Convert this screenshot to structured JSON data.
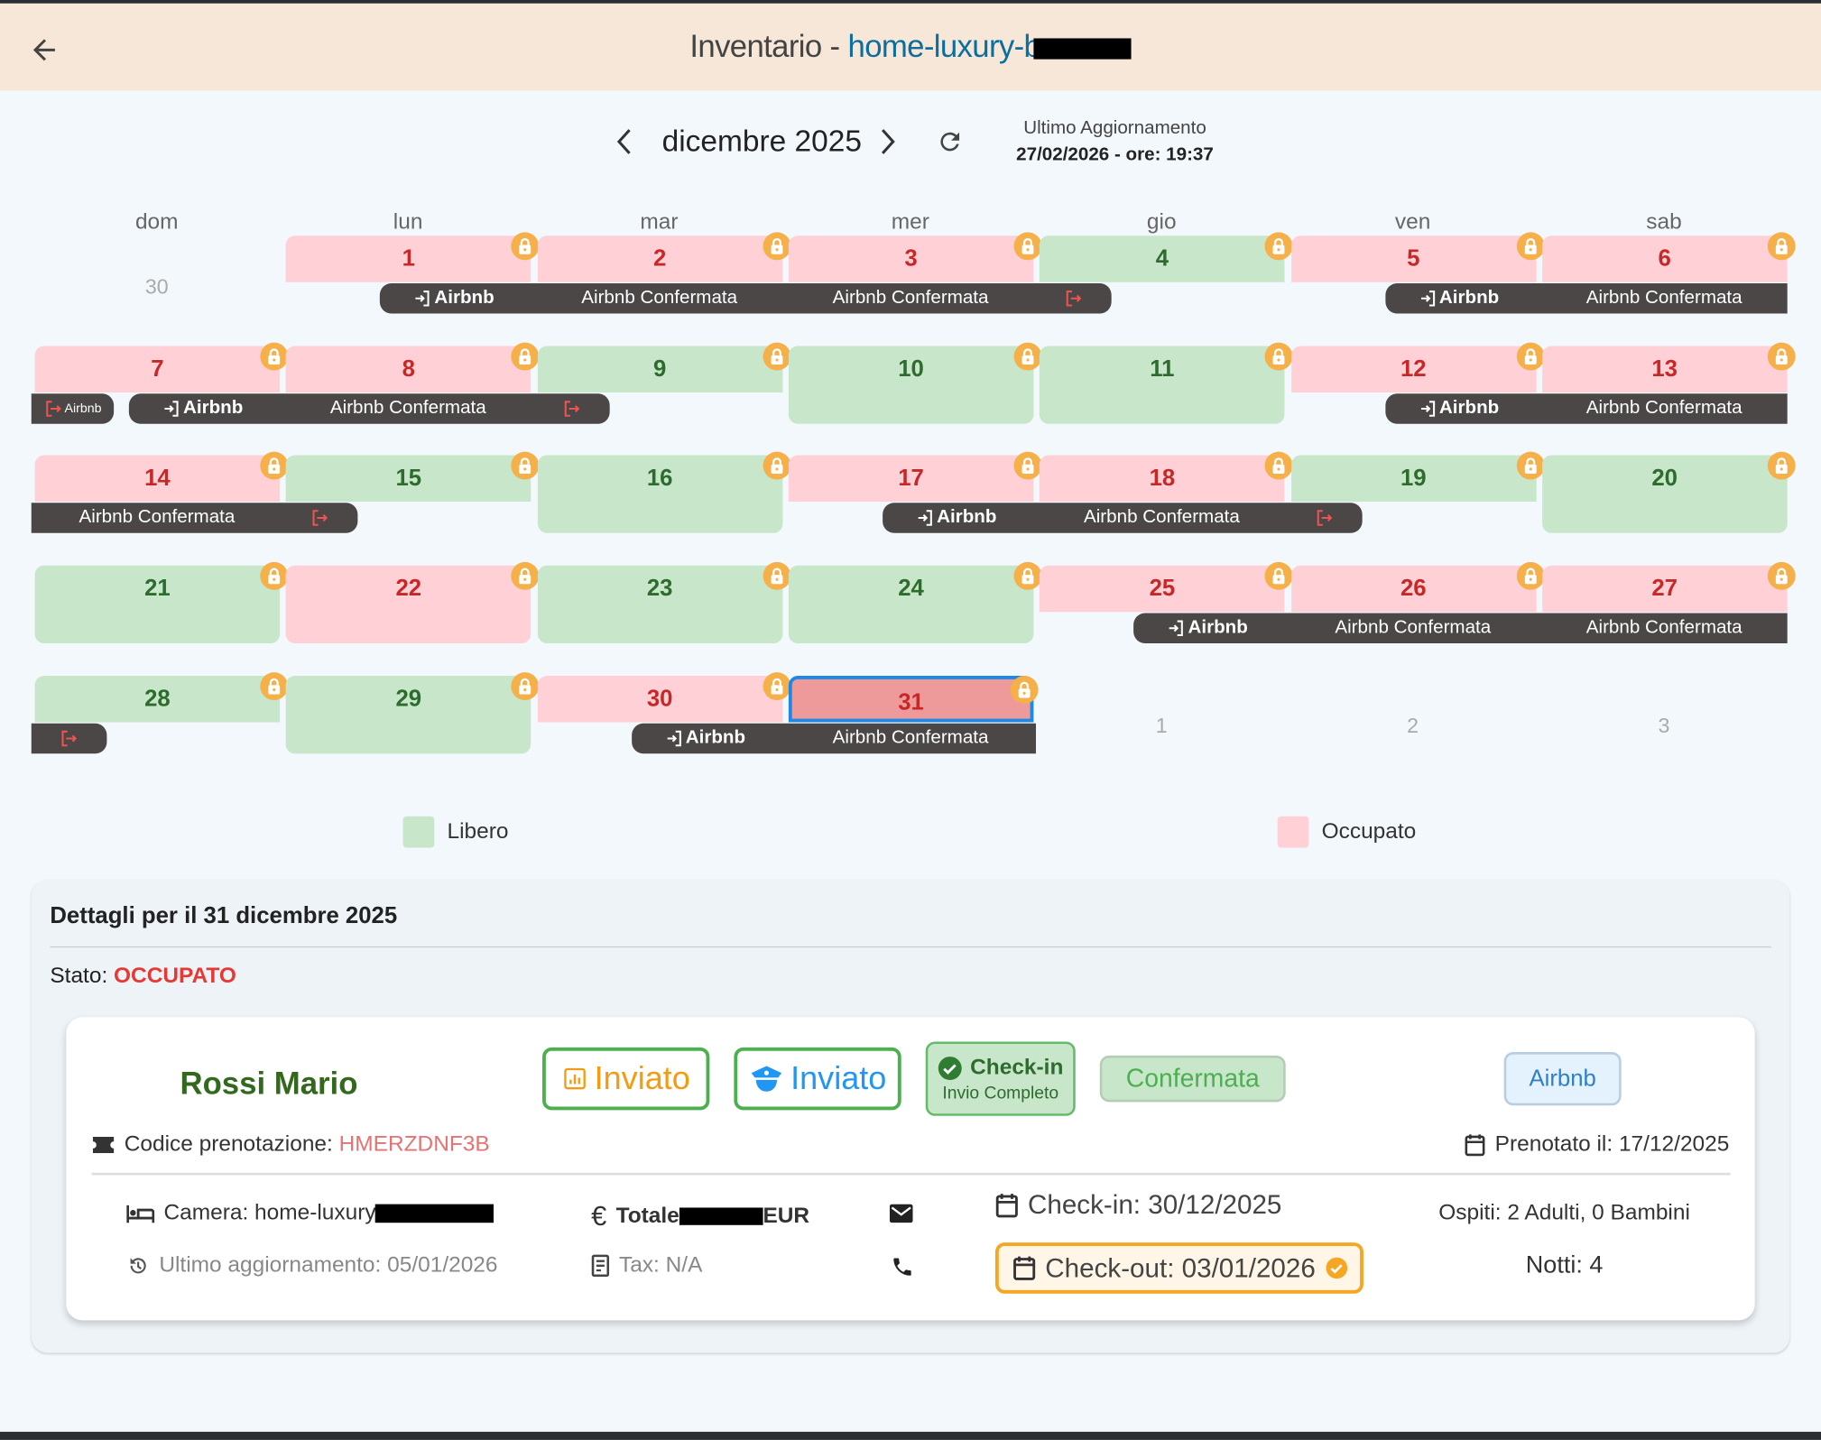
{
  "header": {
    "title_prefix": "Inventario - ",
    "property_visible": "home-luxury-b",
    "back_icon": "arrow-left-icon"
  },
  "nav": {
    "month": "dicembre 2025",
    "updated_label": "Ultimo Aggiornamento",
    "updated_value": "27/02/2026  - ore: 19:37"
  },
  "weekdays": [
    "dom",
    "lun",
    "mar",
    "mer",
    "gio",
    "ven",
    "sab"
  ],
  "colors": {
    "free": "#c8e6c9",
    "busy": "#ffd1d6",
    "selected": "#ef9a9a",
    "bar": "#4a4746",
    "lock": "#f5b04a",
    "accent": "#1e88e5"
  },
  "calendar": {
    "selected_day": 31,
    "other_month": [
      {
        "label": "30",
        "week": 0,
        "col": 0
      },
      {
        "label": "1",
        "week": 4,
        "col": 4
      },
      {
        "label": "2",
        "week": 4,
        "col": 5
      },
      {
        "label": "3",
        "week": 4,
        "col": 6
      }
    ],
    "weeks": [
      [
        null,
        {
          "d": "1",
          "s": "busy"
        },
        {
          "d": "2",
          "s": "busy"
        },
        {
          "d": "3",
          "s": "busy"
        },
        {
          "d": "4",
          "s": "free"
        },
        {
          "d": "5",
          "s": "busy"
        },
        {
          "d": "6",
          "s": "busy"
        }
      ],
      [
        {
          "d": "7",
          "s": "busy"
        },
        {
          "d": "8",
          "s": "busy"
        },
        {
          "d": "9",
          "s": "free"
        },
        {
          "d": "10",
          "s": "free"
        },
        {
          "d": "11",
          "s": "free"
        },
        {
          "d": "12",
          "s": "busy"
        },
        {
          "d": "13",
          "s": "busy"
        }
      ],
      [
        {
          "d": "14",
          "s": "busy"
        },
        {
          "d": "15",
          "s": "free"
        },
        {
          "d": "16",
          "s": "free"
        },
        {
          "d": "17",
          "s": "busy"
        },
        {
          "d": "18",
          "s": "busy"
        },
        {
          "d": "19",
          "s": "free"
        },
        {
          "d": "20",
          "s": "free"
        }
      ],
      [
        {
          "d": "21",
          "s": "free"
        },
        {
          "d": "22",
          "s": "busy"
        },
        {
          "d": "23",
          "s": "free"
        },
        {
          "d": "24",
          "s": "free"
        },
        {
          "d": "25",
          "s": "busy"
        },
        {
          "d": "26",
          "s": "busy"
        },
        {
          "d": "27",
          "s": "busy"
        }
      ],
      [
        {
          "d": "28",
          "s": "free"
        },
        {
          "d": "29",
          "s": "free"
        },
        {
          "d": "30",
          "s": "busy"
        },
        {
          "d": "31",
          "s": "busy"
        },
        null,
        null,
        null
      ]
    ],
    "bookings": [
      {
        "week": 0,
        "cont_left": false,
        "cont_right": false,
        "segs": [
          {
            "col": 1,
            "type": "checkin",
            "label": "Airbnb"
          },
          {
            "col": 2,
            "type": "stay",
            "label": "Airbnb Confermata"
          },
          {
            "col": 3,
            "type": "stay",
            "label": "Airbnb Confermata"
          },
          {
            "col": 4,
            "type": "checkout",
            "label": ""
          }
        ]
      },
      {
        "week": 0,
        "cont_left": false,
        "cont_right": true,
        "segs": [
          {
            "col": 5,
            "type": "checkin",
            "label": "Airbnb"
          },
          {
            "col": 6,
            "type": "stay",
            "label": "Airbnb Confermata"
          }
        ]
      },
      {
        "week": 1,
        "cont_left": true,
        "cont_right": false,
        "segs": [
          {
            "col": 0,
            "type": "checkout",
            "label": "Airbnb"
          }
        ]
      },
      {
        "week": 1,
        "cont_left": false,
        "cont_right": false,
        "segs": [
          {
            "col": 0,
            "type": "checkin",
            "label": "Airbnb"
          },
          {
            "col": 1,
            "type": "stay",
            "label": "Airbnb Confermata"
          },
          {
            "col": 2,
            "type": "checkout",
            "label": ""
          }
        ]
      },
      {
        "week": 1,
        "cont_left": false,
        "cont_right": true,
        "segs": [
          {
            "col": 5,
            "type": "checkin",
            "label": "Airbnb"
          },
          {
            "col": 6,
            "type": "stay",
            "label": "Airbnb Confermata"
          }
        ]
      },
      {
        "week": 2,
        "cont_left": true,
        "cont_right": false,
        "segs": [
          {
            "col": 0,
            "type": "stay",
            "label": "Airbnb Confermata"
          },
          {
            "col": 1,
            "type": "checkout",
            "label": ""
          }
        ]
      },
      {
        "week": 2,
        "cont_left": false,
        "cont_right": false,
        "segs": [
          {
            "col": 3,
            "type": "checkin",
            "label": "Airbnb"
          },
          {
            "col": 4,
            "type": "stay",
            "label": "Airbnb Confermata"
          },
          {
            "col": 5,
            "type": "checkout",
            "label": ""
          }
        ]
      },
      {
        "week": 3,
        "cont_left": false,
        "cont_right": true,
        "segs": [
          {
            "col": 4,
            "type": "checkin",
            "label": "Airbnb"
          },
          {
            "col": 5,
            "type": "stay",
            "label": "Airbnb Confermata"
          },
          {
            "col": 6,
            "type": "stay",
            "label": "Airbnb Confermata"
          }
        ]
      },
      {
        "week": 4,
        "cont_left": true,
        "cont_right": false,
        "segs": [
          {
            "col": 0,
            "type": "checkout",
            "label": ""
          }
        ]
      },
      {
        "week": 4,
        "cont_left": false,
        "cont_right": true,
        "segs": [
          {
            "col": 2,
            "type": "checkin",
            "label": "Airbnb"
          },
          {
            "col": 3,
            "type": "stay",
            "label": "Airbnb Confermata"
          }
        ]
      }
    ]
  },
  "legend": {
    "free": "Libero",
    "busy": "Occupato"
  },
  "details": {
    "title": "Dettagli per il 31 dicembre 2025",
    "status_label": "Stato: ",
    "status_value": "OCCUPATO",
    "guest_name": "Rossi Mario",
    "badge_report": "Inviato",
    "badge_police": "Inviato",
    "checkin_status": "Check-in",
    "checkin_sub": "Invio Completo",
    "booking_status": "Confermata",
    "channel": "Airbnb",
    "code_label": "Codice prenotazione: ",
    "code_value": "HMERZDNF3B",
    "booked_on": "Prenotato il: 17/12/2025",
    "room_label": "Camera: home-luxury",
    "last_update": "Ultimo aggiornamento: 05/01/2026",
    "total_label": "Totale",
    "total_currency": "EUR",
    "tax": "Tax: N/A",
    "checkin_date": "Check-in: 30/12/2025",
    "checkout_date": "Check-out: 03/01/2026",
    "guests": "Ospiti: 2 Adulti, 0 Bambini",
    "nights": "Notti: 4"
  }
}
